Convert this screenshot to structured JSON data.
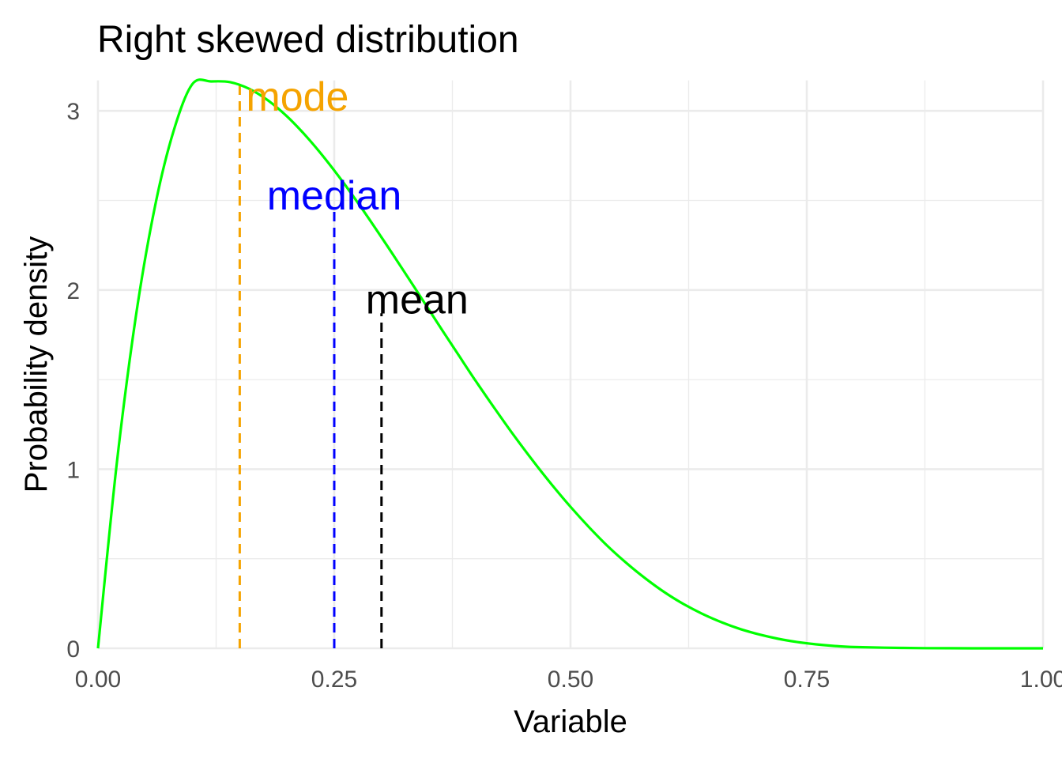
{
  "chart_data": {
    "type": "line",
    "title": "Right skewed distribution",
    "xlabel": "Variable",
    "ylabel": "Probability density",
    "xlim": [
      0,
      1
    ],
    "ylim": [
      0,
      3.17
    ],
    "x_ticks": [
      0,
      0.25,
      0.5,
      0.75,
      1
    ],
    "x_tick_labels": [
      "0.00",
      "0.25",
      "0.50",
      "0.75",
      "1.00"
    ],
    "y_ticks": [
      0,
      1,
      2,
      3
    ],
    "y_tick_labels": [
      "0",
      "1",
      "2",
      "3"
    ],
    "grid": true,
    "curve_color": "#00ff00",
    "series": [
      {
        "x": [
          0,
          0.02,
          0.04,
          0.06,
          0.08,
          0.1,
          0.12,
          0.14,
          0.16,
          0.18,
          0.2,
          0.22,
          0.24,
          0.26,
          0.28,
          0.3,
          0.32,
          0.34,
          0.36,
          0.38,
          0.4,
          0.42,
          0.44,
          0.46,
          0.48,
          0.5,
          0.52,
          0.54,
          0.56,
          0.58,
          0.6,
          0.62,
          0.64,
          0.66,
          0.68,
          0.7,
          0.72,
          0.74,
          0.76,
          0.78,
          0.8,
          0.85,
          0.9,
          0.95,
          1.0
        ],
        "y": [
          0,
          1.036,
          1.849,
          2.459,
          2.888,
          3.15,
          3.164,
          3.16,
          3.123,
          3.058,
          2.969,
          2.86,
          2.735,
          2.597,
          2.449,
          2.294,
          2.135,
          1.973,
          1.81,
          1.649,
          1.49,
          1.337,
          1.189,
          1.048,
          0.915,
          0.79,
          0.674,
          0.567,
          0.472,
          0.387,
          0.311,
          0.246,
          0.191,
          0.145,
          0.107,
          0.077,
          0.053,
          0.035,
          0.022,
          0.013,
          0.007,
          0.002,
          0.0003,
          0,
          0
        ]
      }
    ],
    "vlines": [
      {
        "label": "mode",
        "x": 0.15,
        "y_top": 3.17,
        "color": "#f5a300"
      },
      {
        "label": "median",
        "x": 0.25,
        "y_top": 2.45,
        "color": "#0000ff"
      },
      {
        "label": "mean",
        "x": 0.3,
        "y_top": 1.87,
        "color": "#000000"
      }
    ]
  }
}
